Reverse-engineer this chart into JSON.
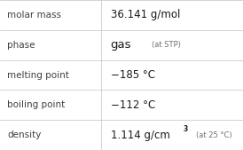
{
  "rows": [
    {
      "label": "molar mass",
      "value_main": "36.141 g/mol",
      "annotation": null,
      "superscript": null
    },
    {
      "label": "phase",
      "value_main": "gas",
      "annotation": "(at STP)",
      "superscript": null
    },
    {
      "label": "melting point",
      "value_main": "−185 °C",
      "annotation": null,
      "superscript": null
    },
    {
      "label": "boiling point",
      "value_main": "−112 °C",
      "annotation": null,
      "superscript": null
    },
    {
      "label": "density",
      "value_main": "1.114 g/cm",
      "annotation": "(at 25 °C)",
      "superscript": "3"
    }
  ],
  "col_split": 0.415,
  "bg_color": "#ffffff",
  "label_color": "#404040",
  "value_color": "#1a1a1a",
  "annotation_color": "#707070",
  "line_color": "#cccccc",
  "label_fontsize": 7.5,
  "value_fontsize": 8.5,
  "phase_value_fontsize": 9.5,
  "annotation_fontsize": 6.0,
  "superscript_fontsize": 5.5
}
